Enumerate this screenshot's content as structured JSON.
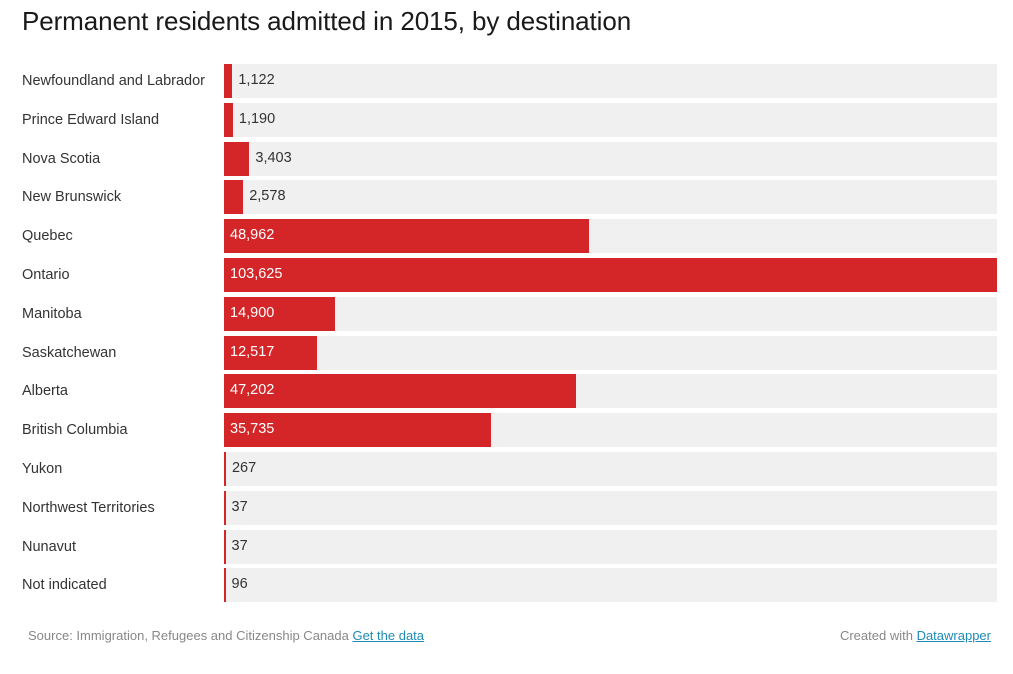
{
  "chart_data": {
    "type": "bar",
    "orientation": "horizontal",
    "title": "Permanent residents admitted in 2015, by destination",
    "xlabel": "",
    "ylabel": "",
    "xlim": [
      0,
      103625
    ],
    "grid": false,
    "categories": [
      "Newfoundland and Labrador",
      "Prince Edward Island",
      "Nova Scotia",
      "New Brunswick",
      "Quebec",
      "Ontario",
      "Manitoba",
      "Saskatchewan",
      "Alberta",
      "British Columbia",
      "Yukon",
      "Northwest Territories",
      "Nunavut",
      "Not indicated"
    ],
    "values": [
      1122,
      1190,
      3403,
      2578,
      48962,
      103625,
      14900,
      12517,
      47202,
      35735,
      267,
      37,
      37,
      96
    ],
    "value_labels": [
      "1,122",
      "1,190",
      "3,403",
      "2,578",
      "48,962",
      "103,625",
      "14,900",
      "12,517",
      "47,202",
      "35,735",
      "267",
      "37",
      "37",
      "96"
    ],
    "bar_color": "#d42628",
    "track_color": "#f0f0f0"
  },
  "footer": {
    "source_text": "Source: Immigration, Refugees and Citizenship Canada",
    "get_data_link": "Get the data",
    "created_with_text": "Created with",
    "datawrapper_link": "Datawrapper"
  }
}
